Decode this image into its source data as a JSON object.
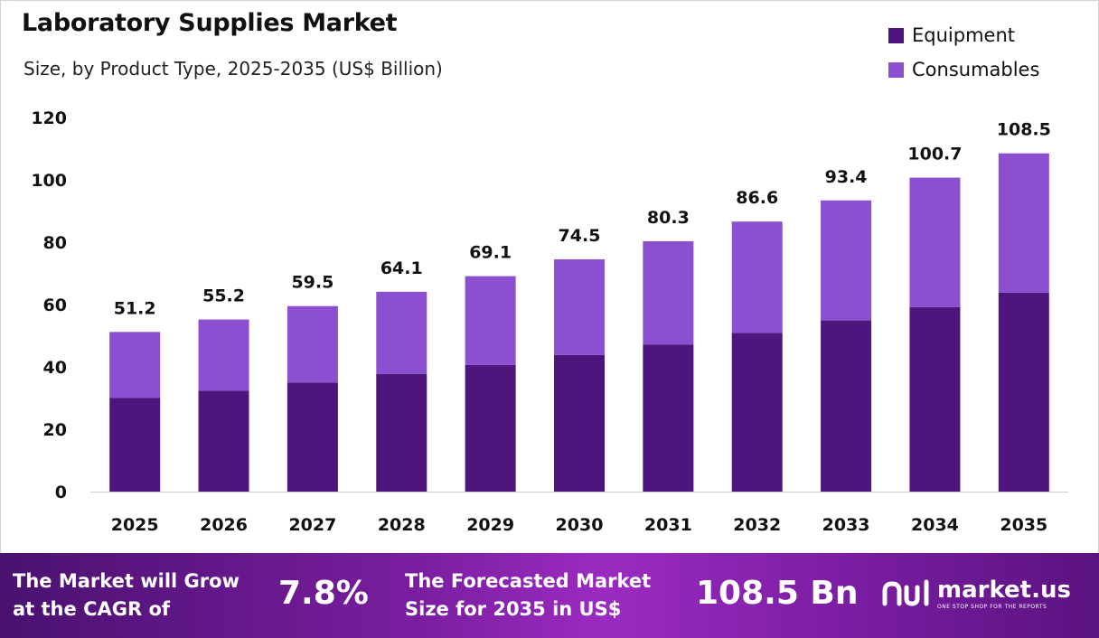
{
  "header": {
    "title": "Laboratory Supplies Market",
    "subtitle": "Size, by Product Type, 2025-2035 (US$ Billion)"
  },
  "legend": [
    {
      "label": "Equipment",
      "color": "#4e157d"
    },
    {
      "label": "Consumables",
      "color": "#8b4fd0"
    }
  ],
  "chart_data": {
    "type": "bar",
    "stacked": true,
    "title": "Laboratory Supplies Market",
    "subtitle": "Size, by Product Type, 2025-2035 (US$ Billion)",
    "categories": [
      "2025",
      "2026",
      "2027",
      "2028",
      "2029",
      "2030",
      "2031",
      "2032",
      "2033",
      "2034",
      "2035"
    ],
    "series": [
      {
        "name": "Equipment",
        "color": "#4e157d",
        "values": [
          30.1,
          32.4,
          35.0,
          37.7,
          40.6,
          43.8,
          47.2,
          50.9,
          54.9,
          59.2,
          63.8
        ]
      },
      {
        "name": "Consumables",
        "color": "#8b4fd0",
        "values": [
          21.1,
          22.8,
          24.5,
          26.4,
          28.5,
          30.7,
          33.1,
          35.7,
          38.5,
          41.5,
          44.7
        ]
      }
    ],
    "totals": [
      "51.2",
      "55.2",
      "59.5",
      "64.1",
      "69.1",
      "74.5",
      "80.3",
      "86.6",
      "93.4",
      "100.7",
      "108.5"
    ],
    "yticks": [
      "0",
      "20",
      "40",
      "60",
      "80",
      "100",
      "120"
    ],
    "ylim": [
      0,
      120
    ],
    "xlabel": "",
    "ylabel": "",
    "legend_position": "top-right",
    "grid": false
  },
  "footer": {
    "cagr_label_line1": "The Market will Grow",
    "cagr_label_line2": "at the CAGR of",
    "cagr_value": "7.8%",
    "forecast_label_line1": "The Forecasted Market",
    "forecast_label_line2": "Size for 2035 in US$",
    "forecast_value": "108.5 Bn",
    "brand_name": "market.us",
    "brand_tagline": "ONE STOP SHOP FOR THE REPORTS"
  }
}
